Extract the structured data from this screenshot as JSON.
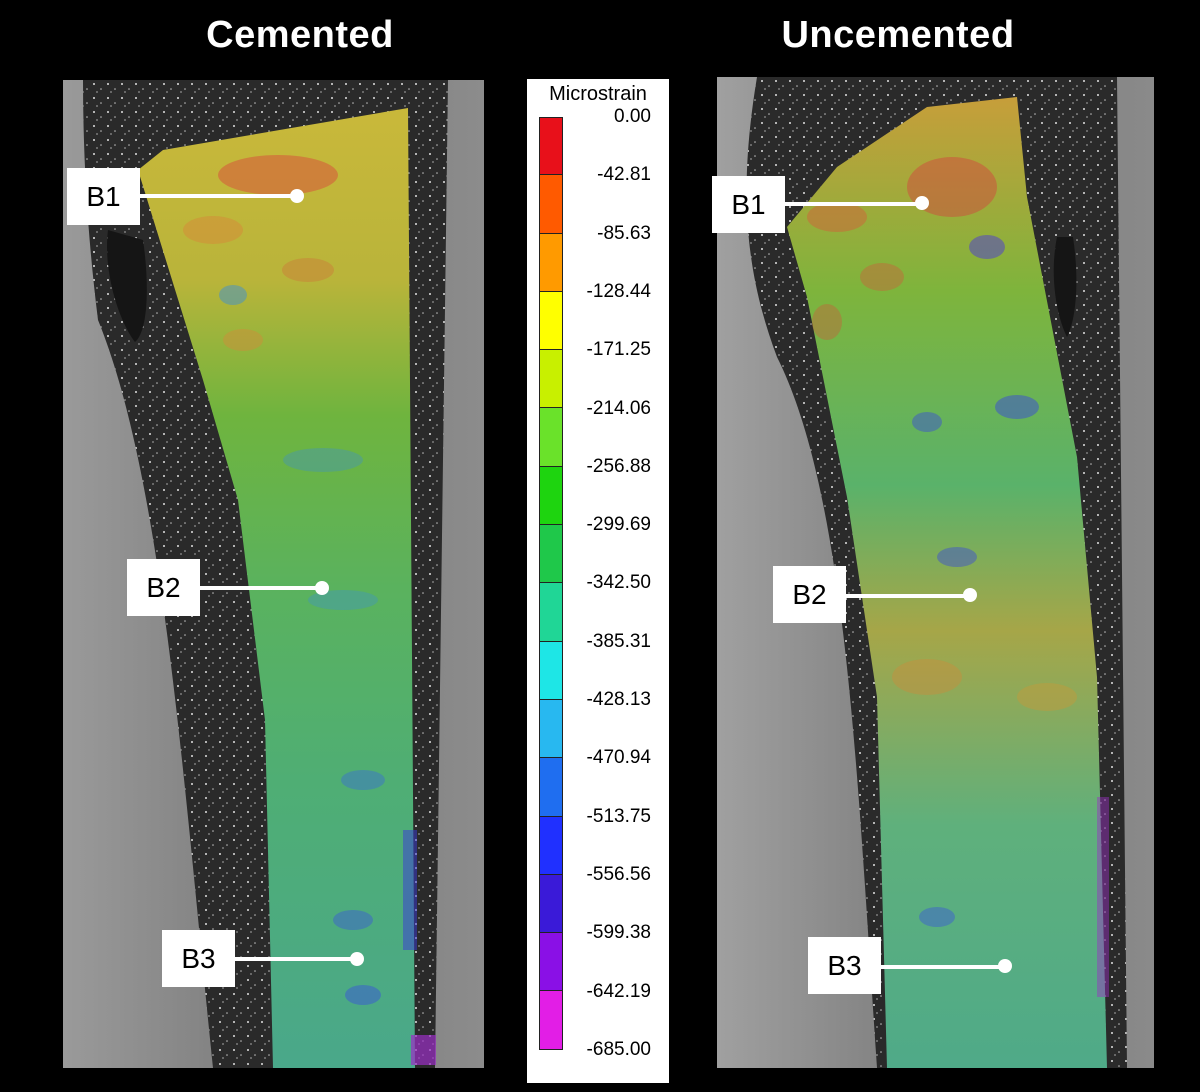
{
  "titles": {
    "left": "Cemented",
    "right": "Uncemented"
  },
  "colorbar": {
    "title": "Microstrain",
    "labels": [
      "0.00",
      "-42.81",
      "-85.63",
      "-128.44",
      "-171.25",
      "-214.06",
      "-256.88",
      "-299.69",
      "-342.50",
      "-385.31",
      "-428.13",
      "-470.94",
      "-513.75",
      "-556.56",
      "-599.38",
      "-642.19",
      "-685.00"
    ],
    "colors": [
      "#e8101a",
      "#ff5a00",
      "#ff9a00",
      "#ffff00",
      "#c8f000",
      "#6ae22a",
      "#1ed40f",
      "#1fc84a",
      "#20d696",
      "#1ee6e6",
      "#28b8f0",
      "#1f6ef0",
      "#2030ff",
      "#3a1ad8",
      "#8a10e6",
      "#e21ee6"
    ]
  },
  "left_panel": {
    "callouts": [
      {
        "label": "B1"
      },
      {
        "label": "B2"
      },
      {
        "label": "B3"
      }
    ]
  },
  "right_panel": {
    "callouts": [
      {
        "label": "B1"
      },
      {
        "label": "B2"
      },
      {
        "label": "B3"
      }
    ]
  }
}
